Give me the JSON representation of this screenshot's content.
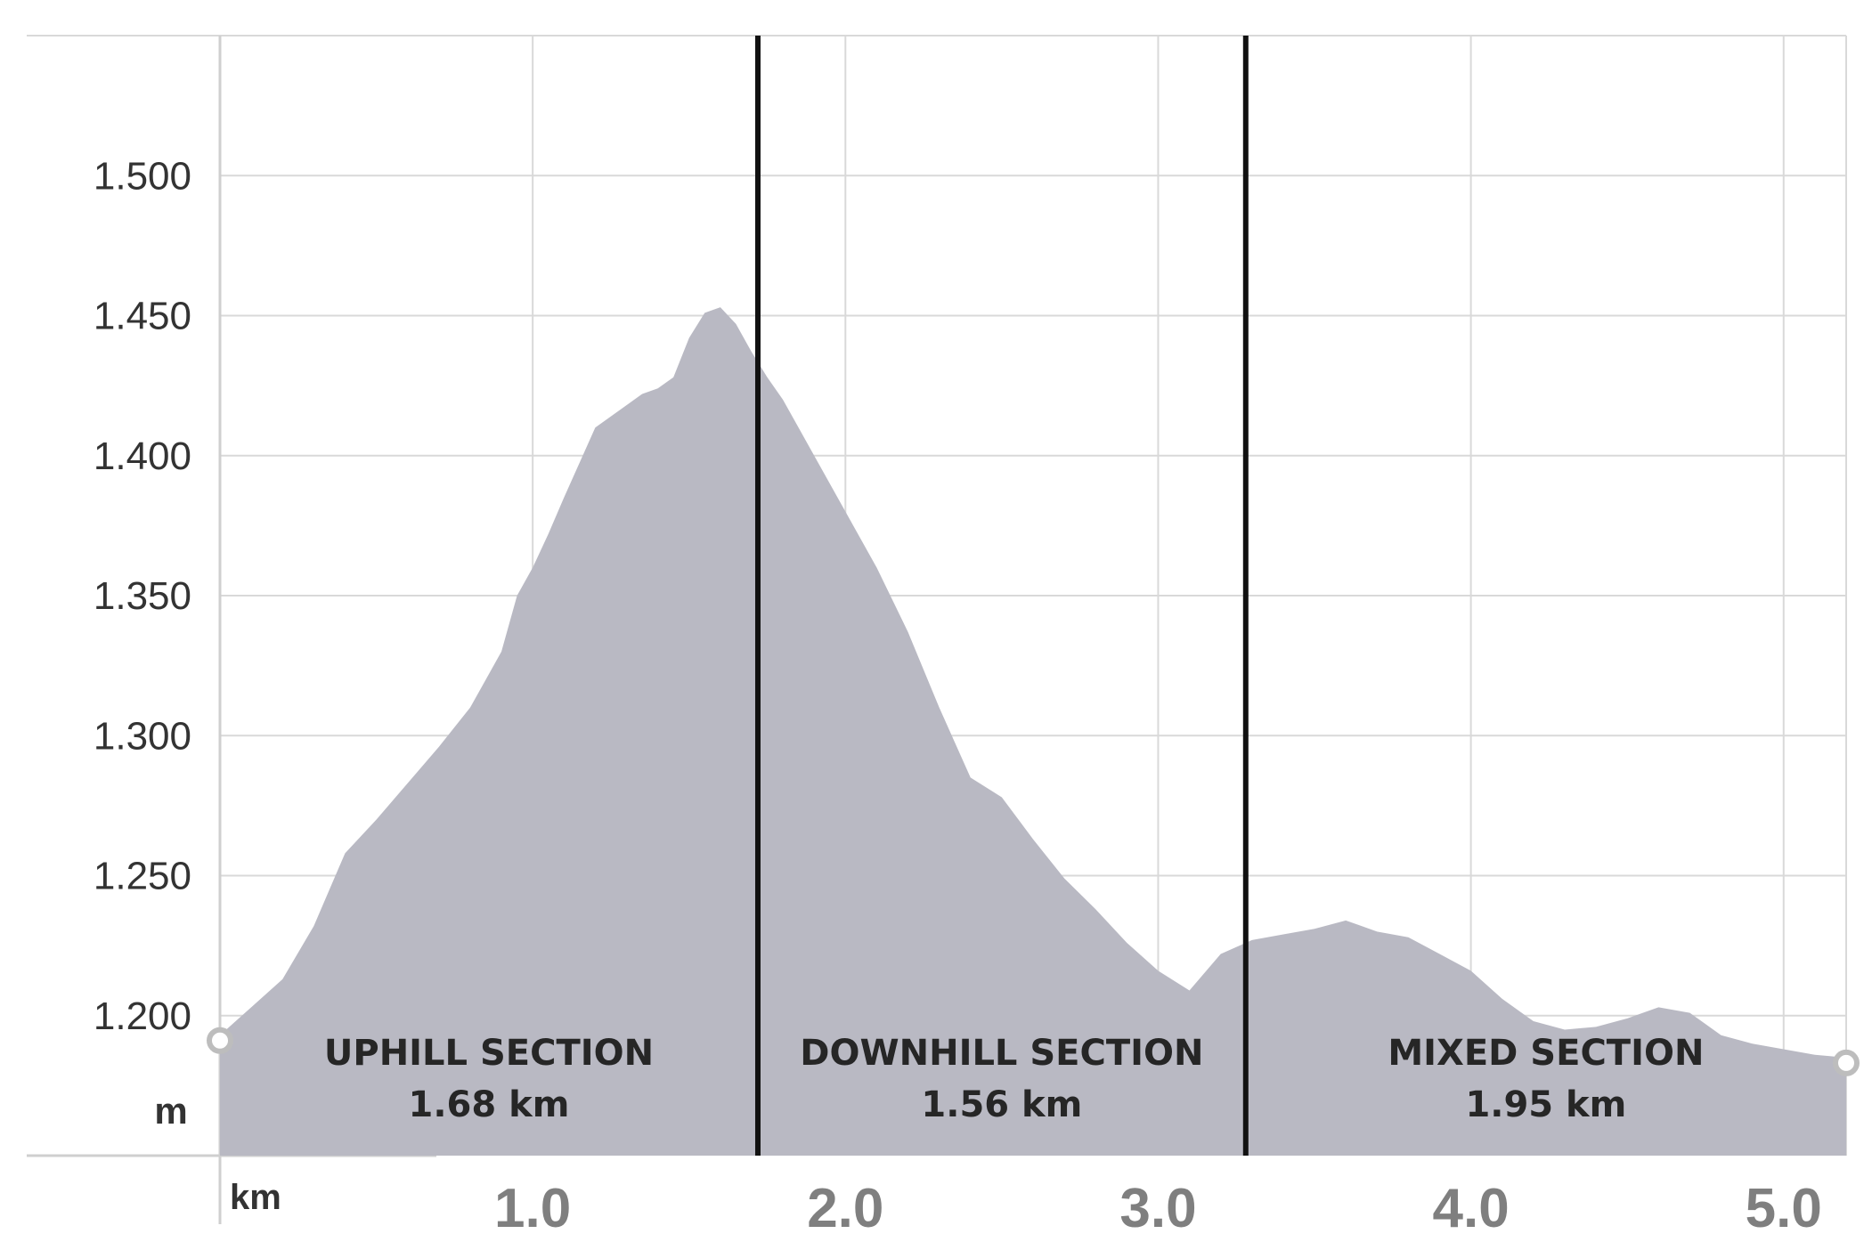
{
  "chart_data": {
    "type": "area",
    "xlabel": "km",
    "ylabel": "m",
    "xlim": [
      0,
      5.2
    ],
    "ylim": [
      1150,
      1550
    ],
    "x_ticks": [
      1.0,
      2.0,
      3.0,
      4.0,
      5.0
    ],
    "x_tick_labels": [
      "1.0",
      "2.0",
      "3.0",
      "4.0",
      "5.0"
    ],
    "y_ticks": [
      1200,
      1250,
      1300,
      1350,
      1400,
      1450,
      1500
    ],
    "y_tick_labels": [
      "1.200",
      "1.250",
      "1.300",
      "1.350",
      "1.400",
      "1.450",
      "1.500"
    ],
    "grid": true,
    "fill_color": "#b9b9c3",
    "divider_color": "#111111",
    "series": [
      {
        "x": [
          0,
          0.1,
          0.2,
          0.3,
          0.4,
          0.5,
          0.6,
          0.7,
          0.8,
          0.9,
          0.95,
          1.0,
          1.05,
          1.1,
          1.2,
          1.3,
          1.35,
          1.4,
          1.45,
          1.5,
          1.55,
          1.6,
          1.65,
          1.7,
          1.75,
          1.8,
          1.85,
          1.9,
          2.0,
          2.1,
          2.2,
          2.3,
          2.4,
          2.5,
          2.6,
          2.7,
          2.8,
          2.9,
          3.0,
          3.1,
          3.2,
          3.3,
          3.4,
          3.5,
          3.6,
          3.7,
          3.8,
          3.9,
          4.0,
          4.1,
          4.2,
          4.3,
          4.4,
          4.5,
          4.6,
          4.7,
          4.8,
          4.9,
          5.0,
          5.1,
          5.2
        ],
        "y": [
          1193,
          1203,
          1213,
          1232,
          1258,
          1270,
          1283,
          1296,
          1310,
          1330,
          1350,
          1360,
          1372,
          1385,
          1410,
          1418,
          1422,
          1424,
          1428,
          1442,
          1451,
          1453,
          1447,
          1437,
          1428,
          1420,
          1410,
          1400,
          1380,
          1360,
          1337,
          1310,
          1285,
          1278,
          1263,
          1249,
          1238,
          1226,
          1216,
          1209,
          1222,
          1227,
          1229,
          1231,
          1234,
          1230,
          1228,
          1222,
          1216,
          1206,
          1198,
          1195,
          1196,
          1199,
          1203,
          1201,
          1193,
          1190,
          1188,
          1186,
          1185
        ]
      }
    ],
    "dividers_x": [
      1.72,
      3.28
    ],
    "sections": [
      {
        "name": "UPHILL SECTION",
        "length": "1.68 km"
      },
      {
        "name": "DOWNHILL SECTION",
        "length": "1.56 km"
      },
      {
        "name": "MIXED SECTION",
        "length": "1.95 km"
      }
    ]
  }
}
